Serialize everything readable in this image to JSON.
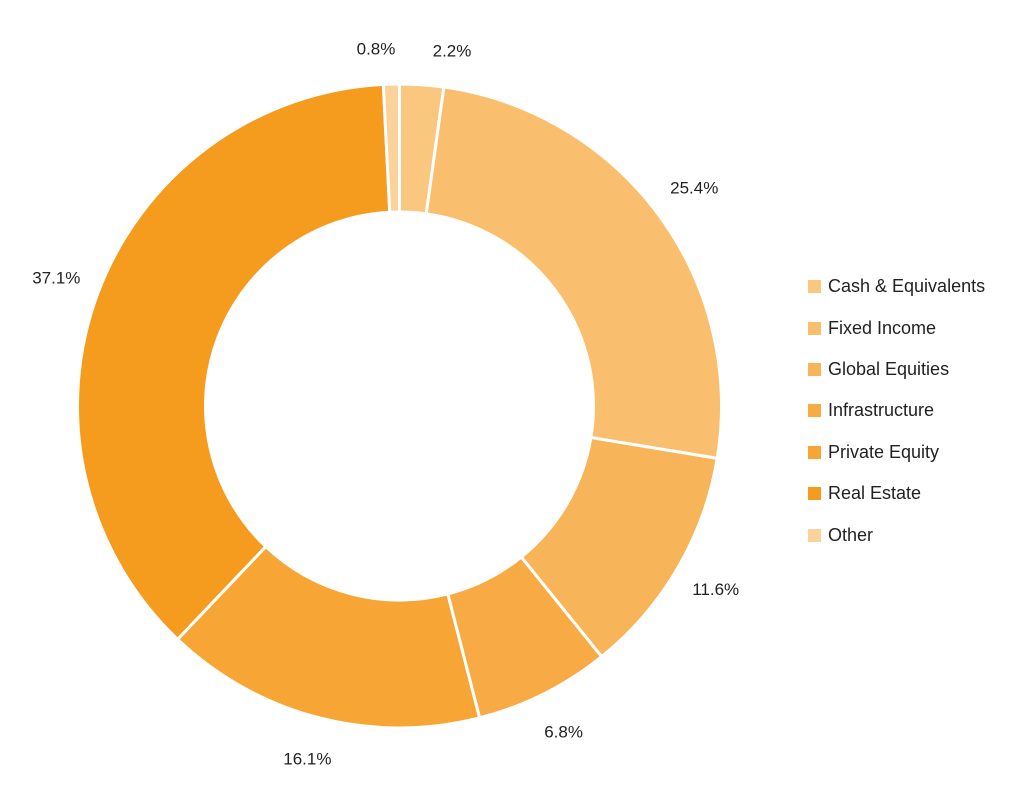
{
  "chart_data": {
    "type": "pie",
    "donut": true,
    "title": "",
    "start": "12 o'clock, clockwise",
    "slices": [
      {
        "label": "Cash & Equivalents",
        "value": 2.2,
        "display": "2.2%",
        "color": "#F9C77E"
      },
      {
        "label": "Fixed Income",
        "value": 25.4,
        "display": "25.4%",
        "color": "#F9BF6E"
      },
      {
        "label": "Global Equities",
        "value": 11.6,
        "display": "11.6%",
        "color": "#F8B458"
      },
      {
        "label": "Infrastructure",
        "value": 6.8,
        "display": "6.8%",
        "color": "#F8AA45"
      },
      {
        "label": "Private Equity",
        "value": 16.1,
        "display": "16.1%",
        "color": "#F7A535"
      },
      {
        "label": "Real Estate",
        "value": 37.1,
        "display": "37.1%",
        "color": "#F59C1F"
      },
      {
        "label": "Other",
        "value": 0.8,
        "display": "0.8%",
        "color": "#FAD29A"
      }
    ],
    "legend": {
      "position": "right"
    }
  }
}
